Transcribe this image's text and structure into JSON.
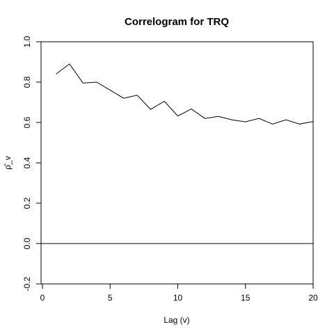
{
  "chart_data": {
    "type": "line",
    "title": "Correlogram  for  TRQ",
    "xlabel": "Lag (v)",
    "ylabel": "ρ̂_v",
    "xlim": [
      0,
      20
    ],
    "ylim": [
      -0.2,
      1.0
    ],
    "x_ticks": [
      0,
      5,
      10,
      15,
      20
    ],
    "y_ticks": [
      -0.2,
      0.0,
      0.2,
      0.4,
      0.6,
      0.8,
      1.0
    ],
    "x_tick_labels": [
      "0",
      "5",
      "10",
      "15",
      "20"
    ],
    "y_tick_labels": [
      "-0.2",
      "0.0",
      "0.2",
      "0.4",
      "0.6",
      "0.8",
      "1.0"
    ],
    "reference_line_y": 0.0,
    "grid": false,
    "legend": "none",
    "series": [
      {
        "x": [
          1,
          2,
          3,
          4,
          5,
          6,
          7,
          8,
          9,
          10,
          11,
          12,
          13,
          14,
          15,
          16,
          17,
          18,
          19,
          20
        ],
        "values": [
          0.84,
          0.89,
          0.795,
          0.8,
          0.76,
          0.72,
          0.735,
          0.665,
          0.705,
          0.632,
          0.667,
          0.62,
          0.63,
          0.613,
          0.603,
          0.62,
          0.592,
          0.613,
          0.592,
          0.605
        ]
      }
    ]
  }
}
